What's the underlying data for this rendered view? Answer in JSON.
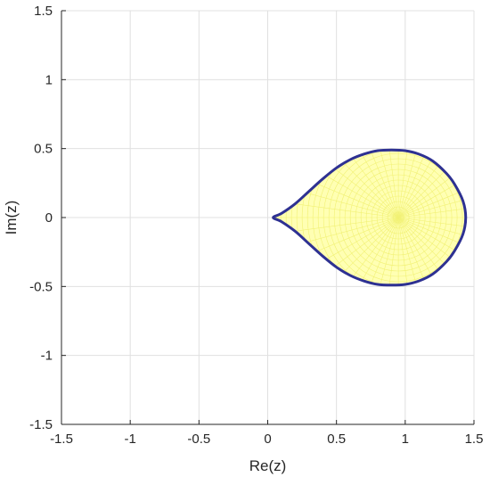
{
  "chart_data": {
    "type": "area",
    "title": "",
    "xlabel": "Re(z)",
    "ylabel": "Im(z)",
    "xlim": [
      -1.5,
      1.5
    ],
    "ylim": [
      -1.5,
      1.5
    ],
    "xticks": [
      "-1.5",
      "-1",
      "-0.5",
      "0",
      "0.5",
      "1",
      "1.5"
    ],
    "yticks": [
      "-1.5",
      "-1",
      "-0.5",
      "0",
      "0.5",
      "1",
      "1.5"
    ],
    "grid": true,
    "colors": {
      "boundary": "#2e3192",
      "fill": "#ffffb3",
      "mesh": "#eeee66",
      "grid": "#e0e0e0",
      "axis": "#262626"
    },
    "series": [
      {
        "x": [
          0.04,
          0.1,
          0.2,
          0.3,
          0.4,
          0.5,
          0.6,
          0.7,
          0.8,
          0.9,
          1.0,
          1.1,
          1.2,
          1.3,
          1.36,
          1.42,
          1.44
        ],
        "y": [
          0.0,
          0.03,
          0.1,
          0.19,
          0.28,
          0.36,
          0.42,
          0.46,
          0.485,
          0.49,
          0.485,
          0.46,
          0.41,
          0.32,
          0.24,
          0.12,
          0.0
        ]
      }
    ]
  }
}
